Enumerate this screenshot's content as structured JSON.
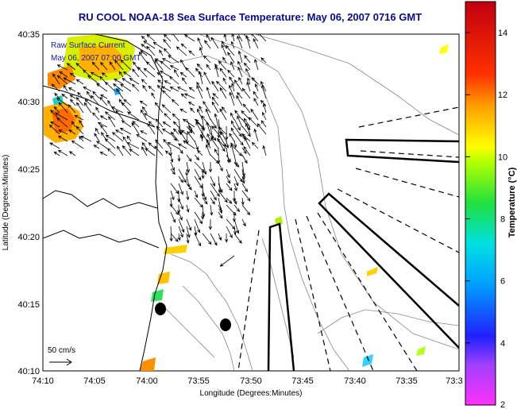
{
  "title": "RU COOL  NOAA-18  Sea Surface Temperature:  May 06, 2007 0716 GMT",
  "inset": {
    "line1": "Raw Surface Current",
    "line2": "May 06, 2007 07:00 GMT"
  },
  "scale": {
    "label": "50 cm/s"
  },
  "axes": {
    "xlabel": "Longitude (Degrees:Minutes)",
    "ylabel": "Latitude (Degrees:Minutes)",
    "xticks": [
      "74:10",
      "74:05",
      "74:00",
      "73:55",
      "73:50",
      "73:45",
      "73:40",
      "73:35",
      "73:3"
    ],
    "yticks": [
      "40:35",
      "40:30",
      "40:25",
      "40:20",
      "40:15",
      "40:10"
    ]
  },
  "colorbar": {
    "label": "Temperature (°C)",
    "ticks": [
      "14",
      "12",
      "10",
      "8",
      "6",
      "4",
      "2"
    ],
    "min": 2,
    "max": 15
  },
  "colors": {
    "title": "#0a0a8a",
    "inset_text": "#1a1aa0",
    "land": "#ffffff",
    "sea": "#ffffff"
  }
}
